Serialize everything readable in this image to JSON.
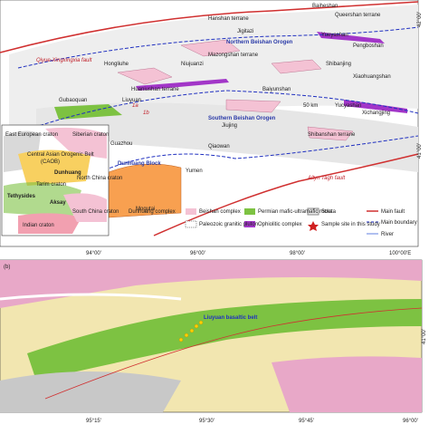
{
  "panel_a": {
    "faults": [
      "Qiyue-Xingxingxia fault",
      "Altyn Tagh fault"
    ],
    "terranes": [
      "Hanshan terrane",
      "Queershan terrane",
      "Mazongshan terrane",
      "Huaniushan terrane",
      "Shibanshan terrane"
    ],
    "orogens": [
      "Northern Beishan Orogen",
      "Southern Beishan Orogen",
      "Dunhuang Block"
    ],
    "places": [
      "Baiheshan",
      "Jigitazi",
      "Yueyashan",
      "Pengboshan",
      "Hongliuhe",
      "Niujuanzi",
      "Shibanjing",
      "Xiaohuangshan",
      "Baiyunshan",
      "Gubaoquan",
      "Liuyuan",
      "Yucyashan",
      "Xichangjing",
      "Guazhou",
      "Qiaowan",
      "Yumen",
      "Mogutai",
      "Jiujing"
    ],
    "sites": [
      "1a",
      "1b"
    ],
    "scale": "50 km",
    "inset": [
      "East European craton",
      "Siberian craton",
      "Central Asian Orogenic Belt",
      "(CAOB)",
      "Tarim craton",
      "North China craton",
      "Dunhuang",
      "Tethysides",
      "Aksay",
      "South China craton",
      "Indian craton"
    ],
    "lat_labels": [
      "42°00'",
      "41°00'"
    ],
    "lon_labels": [
      "94°00'",
      "96°00'",
      "98°00'",
      "100°00'E"
    ]
  },
  "legend": [
    "Dunhuang complex",
    "Beishan complex",
    "Paleozoic granitic pluton",
    "Permian mafic-ultramafic rocks",
    "Ophiolitic complex",
    "Strata",
    "Sample site in this study",
    "Main fault",
    "Main boundary",
    "River"
  ],
  "panel_b": {
    "label": "(b)",
    "belt": "Liuyuan basaltic belt",
    "lon_labels": [
      "95°15'",
      "95°30'",
      "95°45'",
      "96°00'"
    ],
    "lat_labels": [
      "41°00'"
    ]
  }
}
